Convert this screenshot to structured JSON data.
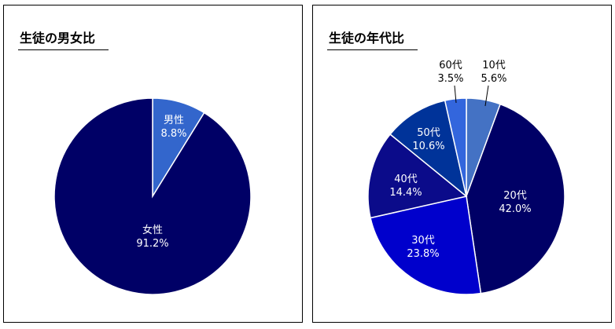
{
  "chart_data": [
    {
      "type": "pie",
      "title": "生徒の男女比",
      "slices": [
        {
          "label": "男性",
          "value": 8.8,
          "pct_label": "8.8%",
          "color": "#3366cc"
        },
        {
          "label": "女性",
          "value": 91.2,
          "pct_label": "91.2%",
          "color": "#000066"
        }
      ]
    },
    {
      "type": "pie",
      "title": "生徒の年代比",
      "slices": [
        {
          "label": "10代",
          "value": 5.6,
          "pct_label": "5.6%",
          "color": "#4472c4"
        },
        {
          "label": "20代",
          "value": 42.0,
          "pct_label": "42.0%",
          "color": "#000066"
        },
        {
          "label": "30代",
          "value": 23.8,
          "pct_label": "23.8%",
          "color": "#0000cc"
        },
        {
          "label": "40代",
          "value": 14.4,
          "pct_label": "14.4%",
          "color": "#0b0b8a"
        },
        {
          "label": "50代",
          "value": 10.6,
          "pct_label": "10.6%",
          "color": "#003399"
        },
        {
          "label": "60代",
          "value": 3.5,
          "pct_label": "3.5%",
          "color": "#3366dd"
        }
      ]
    }
  ]
}
